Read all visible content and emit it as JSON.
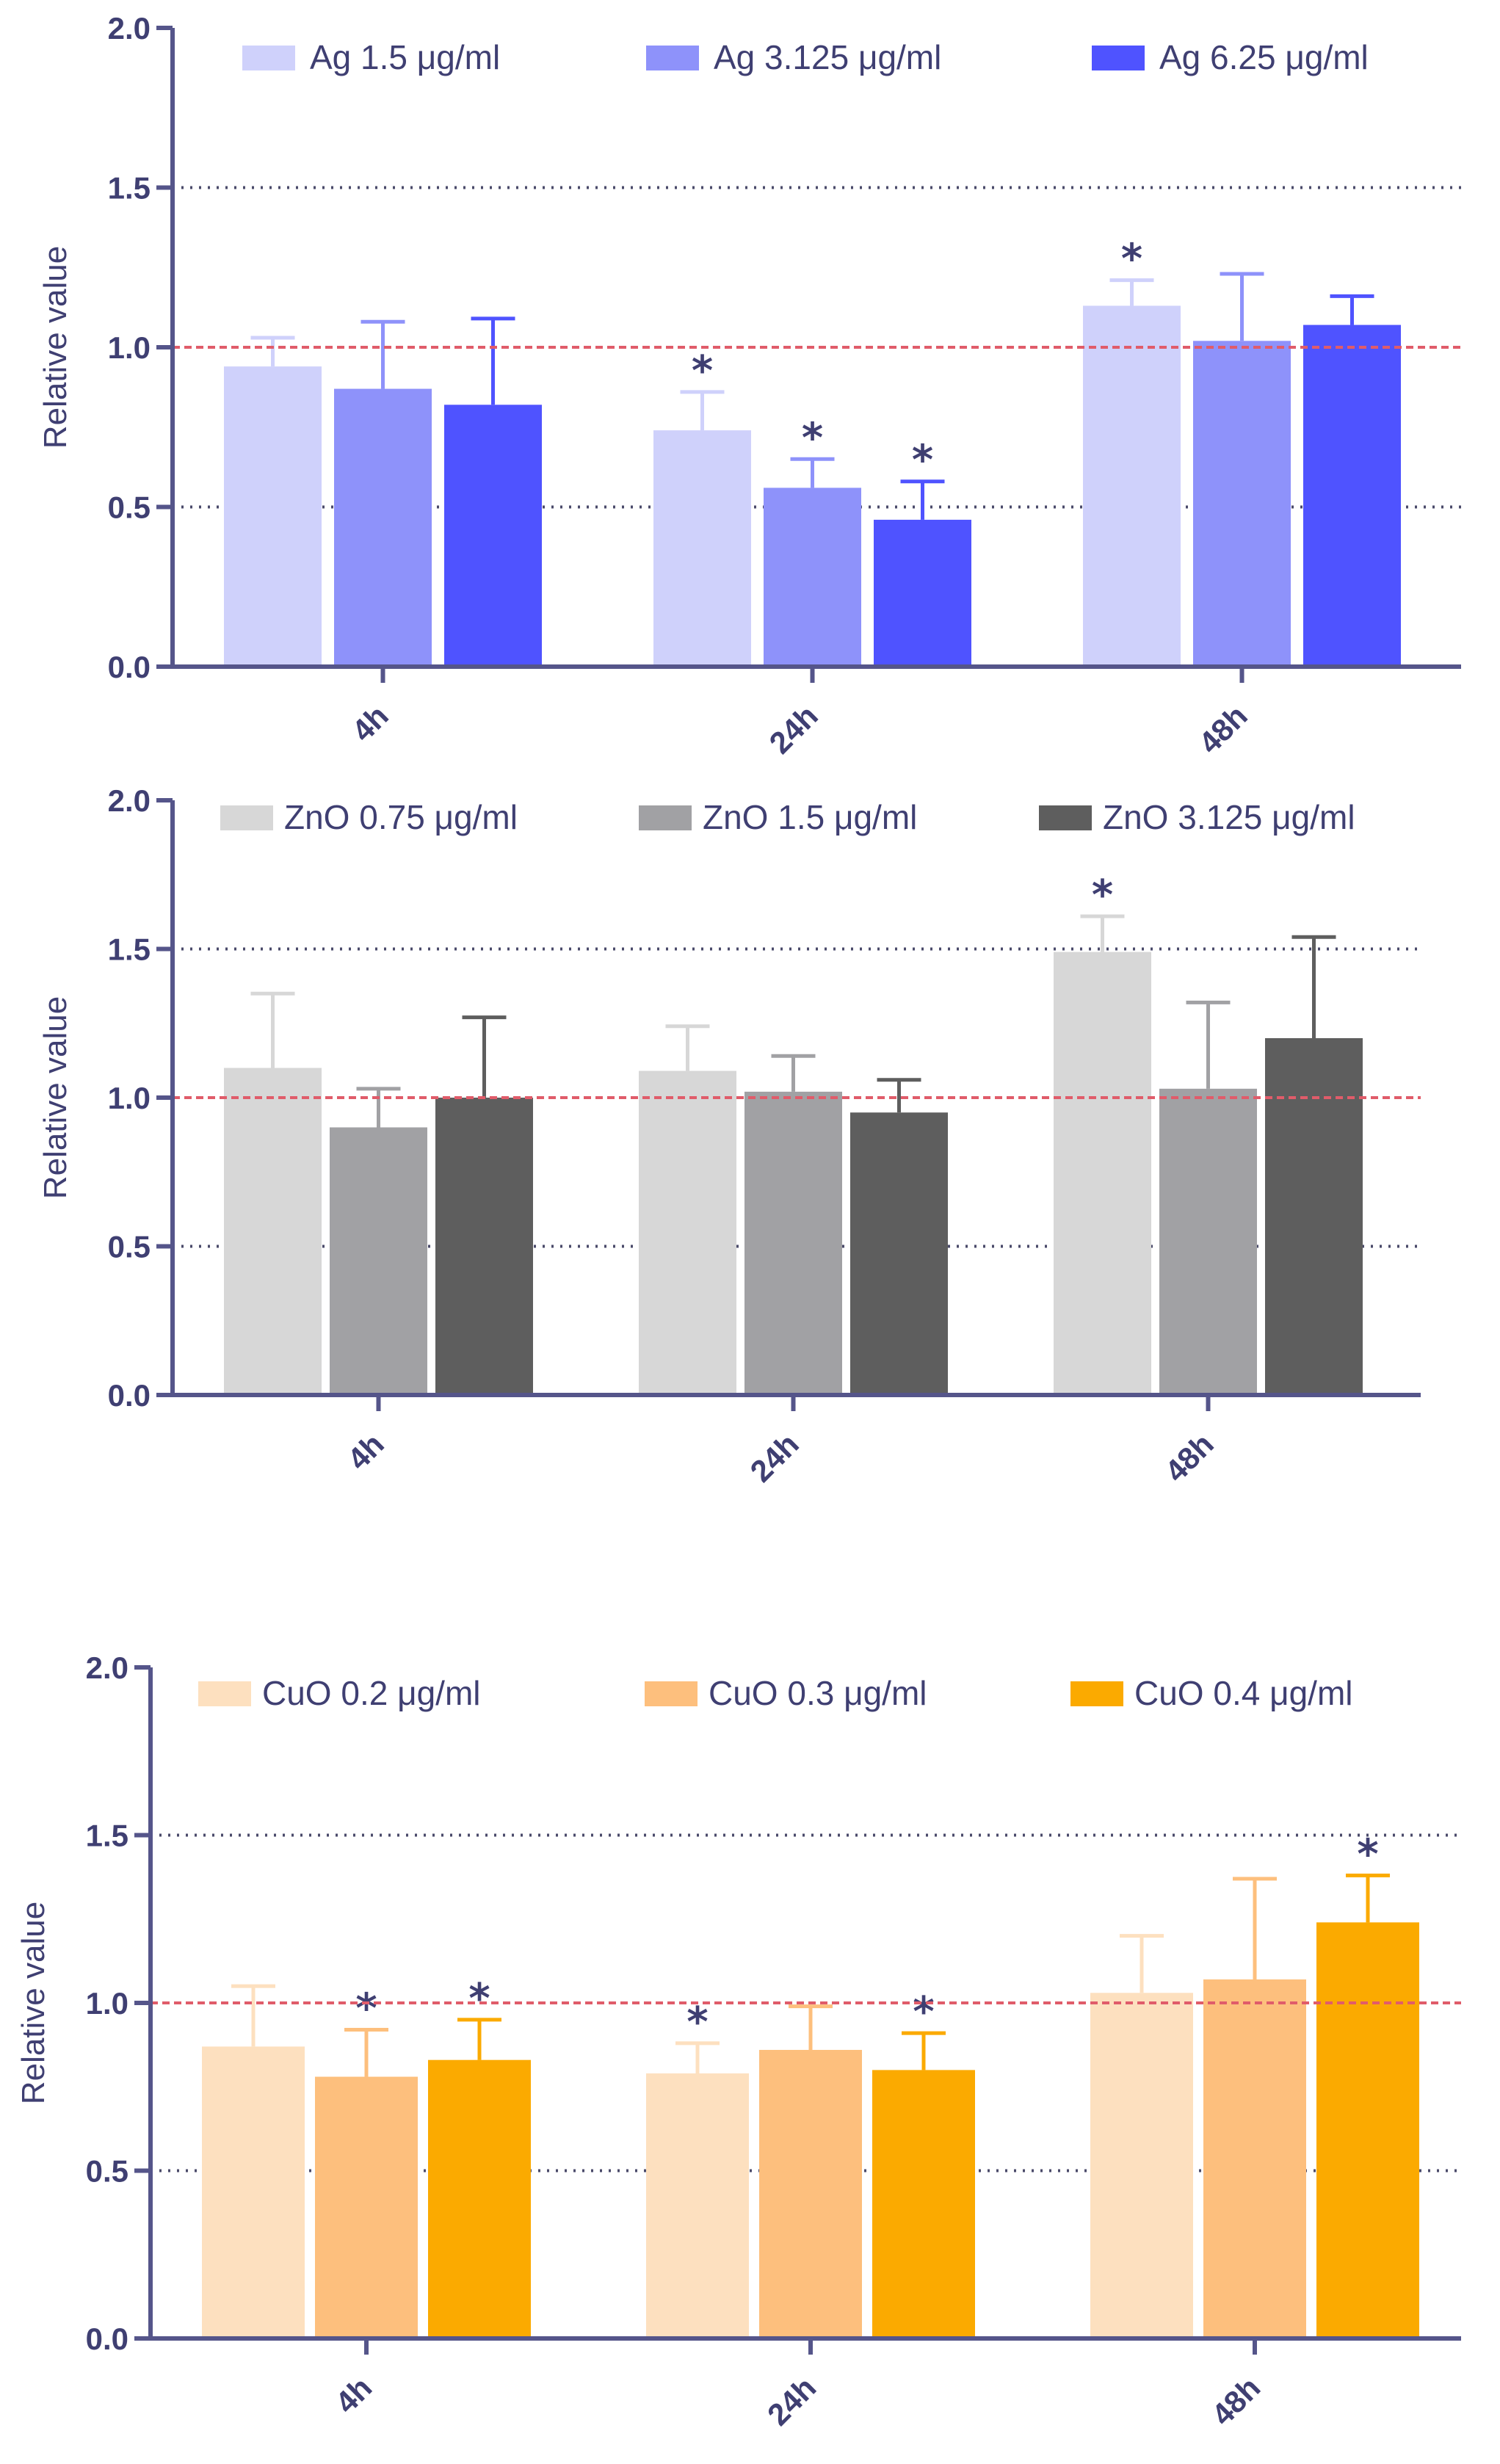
{
  "chart_data": [
    {
      "type": "bar",
      "id": "ag",
      "title": "",
      "xlabel": "",
      "ylabel": "Relative value",
      "ylim": [
        0,
        2.0
      ],
      "yticks": [
        "0.0",
        "0.5",
        "1.0",
        "1.5",
        "2.0"
      ],
      "categories": [
        "4h",
        "24h",
        "48h"
      ],
      "reference_line": 1.0,
      "dotted_gridlines": [
        0.5,
        1.5
      ],
      "legend_position": "top",
      "series": [
        {
          "name": "Ag 1.5 μg/ml",
          "color": "#cfd1fb",
          "values": [
            0.94,
            0.74,
            1.13
          ],
          "errors": [
            0.09,
            0.12,
            0.08
          ],
          "significant": [
            false,
            true,
            true
          ]
        },
        {
          "name": "Ag 3.125 μg/ml",
          "color": "#8e92fa",
          "values": [
            0.87,
            0.56,
            1.02
          ],
          "errors": [
            0.21,
            0.09,
            0.21
          ],
          "significant": [
            false,
            true,
            false
          ]
        },
        {
          "name": "Ag 6.25 μg/ml",
          "color": "#4f53ff",
          "values": [
            0.82,
            0.46,
            1.07
          ],
          "errors": [
            0.27,
            0.12,
            0.09
          ],
          "significant": [
            false,
            true,
            false
          ]
        }
      ]
    },
    {
      "type": "bar",
      "id": "zno",
      "title": "",
      "xlabel": "",
      "ylabel": "Relative value",
      "ylim": [
        0,
        2.0
      ],
      "yticks": [
        "0.0",
        "0.5",
        "1.0",
        "1.5",
        "2.0"
      ],
      "categories": [
        "4h",
        "24h",
        "48h"
      ],
      "reference_line": 1.0,
      "dotted_gridlines": [
        0.5,
        1.5
      ],
      "legend_position": "top",
      "series": [
        {
          "name": "ZnO 0.75 μg/ml",
          "color": "#d7d7d7",
          "values": [
            1.1,
            1.09,
            1.49
          ],
          "errors": [
            0.25,
            0.15,
            0.12
          ],
          "significant": [
            false,
            false,
            true
          ]
        },
        {
          "name": "ZnO 1.5 μg/ml",
          "color": "#a1a1a4",
          "values": [
            0.9,
            1.02,
            1.03
          ],
          "errors": [
            0.13,
            0.12,
            0.29
          ],
          "significant": [
            false,
            false,
            false
          ]
        },
        {
          "name": "ZnO 3.125 μg/ml",
          "color": "#5e5e5e",
          "values": [
            1.0,
            0.95,
            1.2
          ],
          "errors": [
            0.27,
            0.11,
            0.34
          ],
          "significant": [
            false,
            false,
            false
          ]
        }
      ]
    },
    {
      "type": "bar",
      "id": "cuo",
      "title": "",
      "xlabel": "",
      "ylabel": "Relative value",
      "ylim": [
        0,
        2.0
      ],
      "yticks": [
        "0.0",
        "0.5",
        "1.0",
        "1.5",
        "2.0"
      ],
      "categories": [
        "4h",
        "24h",
        "48h"
      ],
      "reference_line": 1.0,
      "dotted_gridlines": [
        0.5,
        1.5
      ],
      "legend_position": "top",
      "series": [
        {
          "name": "CuO 0.2 μg/ml",
          "color": "#fde0bf",
          "values": [
            0.87,
            0.79,
            1.03
          ],
          "errors": [
            0.18,
            0.09,
            0.17
          ],
          "significant": [
            false,
            true,
            false
          ]
        },
        {
          "name": "CuO 0.3 μg/ml",
          "color": "#fdbf7d",
          "values": [
            0.78,
            0.86,
            1.07
          ],
          "errors": [
            0.14,
            0.13,
            0.3
          ],
          "significant": [
            true,
            false,
            false
          ]
        },
        {
          "name": "CuO 0.4 μg/ml",
          "color": "#fbaa00",
          "values": [
            0.83,
            0.8,
            1.24
          ],
          "errors": [
            0.12,
            0.11,
            0.14
          ],
          "significant": [
            true,
            true,
            true
          ]
        }
      ]
    }
  ],
  "significance_symbol": "*",
  "colors": {
    "axis": "#55558a",
    "reference_line": "#e05c6a",
    "gridline": "#4a4a6a",
    "text": "#3f3f72"
  }
}
